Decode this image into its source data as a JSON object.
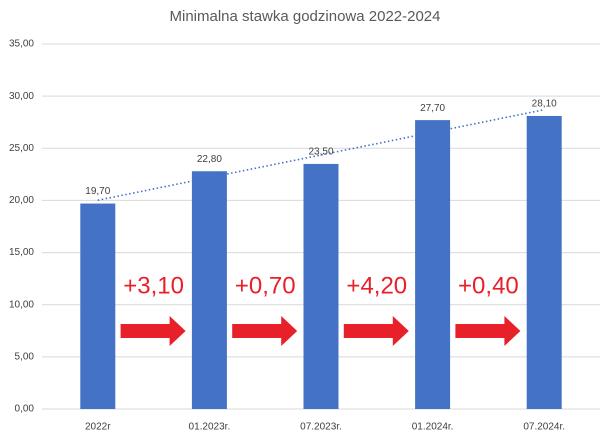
{
  "chart_data": {
    "type": "bar",
    "title": "Minimalna stawka godzinowa 2022-2024",
    "categories": [
      "2022r",
      "01.2023r.",
      "07.2023r.",
      "01.2024r.",
      "07.2024r."
    ],
    "values": [
      19.7,
      22.8,
      23.5,
      27.7,
      28.1
    ],
    "value_labels": [
      "19,70",
      "22,80",
      "23,50",
      "27,70",
      "28,10"
    ],
    "color": "#4472c4",
    "ylim": [
      0,
      35
    ],
    "yticks": [
      {
        "value": 0,
        "label": "0,00"
      },
      {
        "value": 5,
        "label": "5,00"
      },
      {
        "value": 10,
        "label": "10,00"
      },
      {
        "value": 15,
        "label": "15,00"
      },
      {
        "value": 20,
        "label": "20,00"
      },
      {
        "value": 25,
        "label": "25,00"
      },
      {
        "value": 30,
        "label": "30,00"
      },
      {
        "value": 35,
        "label": "35,00"
      }
    ],
    "grid": true,
    "trendline": true,
    "annotations": [
      "+3,10",
      "+0,70",
      "+4,20",
      "+0,40"
    ]
  }
}
